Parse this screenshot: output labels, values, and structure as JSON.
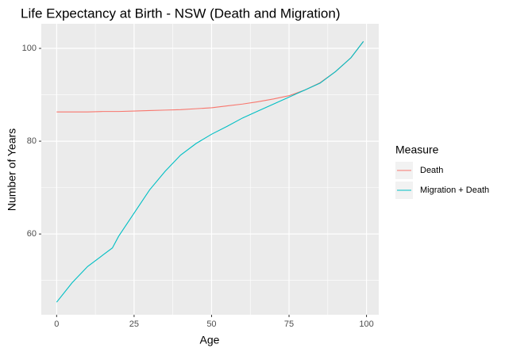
{
  "chart_data": {
    "type": "line",
    "title": "Life Expectancy at Birth - NSW (Death and Migration)",
    "x_label": "Age",
    "y_label": "Number of Years",
    "x": [
      0,
      5,
      10,
      15,
      18,
      20,
      25,
      30,
      35,
      40,
      45,
      50,
      55,
      60,
      65,
      70,
      75,
      80,
      85,
      90,
      95,
      99
    ],
    "series": [
      {
        "name": "Death",
        "color": "#F8766D",
        "values": [
          86.3,
          86.3,
          86.3,
          86.4,
          86.4,
          86.4,
          86.5,
          86.6,
          86.7,
          86.8,
          87.0,
          87.2,
          87.6,
          88.0,
          88.5,
          89.1,
          89.8,
          91.0,
          92.6,
          95.0,
          98.0,
          101.5
        ]
      },
      {
        "name": "Migration + Death",
        "color": "#00BFC4",
        "values": [
          45.3,
          49.5,
          53.0,
          55.5,
          57.0,
          59.5,
          64.5,
          69.5,
          73.5,
          77.0,
          79.5,
          81.5,
          83.2,
          85.0,
          86.5,
          88.0,
          89.5,
          91.0,
          92.5,
          95.0,
          98.0,
          101.5
        ]
      }
    ],
    "legend_title": "Measure",
    "legend": "right",
    "xlim": [
      -4.95,
      103.95
    ],
    "xticks": [
      0,
      25,
      50,
      75,
      100
    ],
    "ylim": [
      42.6,
      105.3
    ],
    "yticks": [
      60,
      80,
      100
    ],
    "grid": true
  }
}
